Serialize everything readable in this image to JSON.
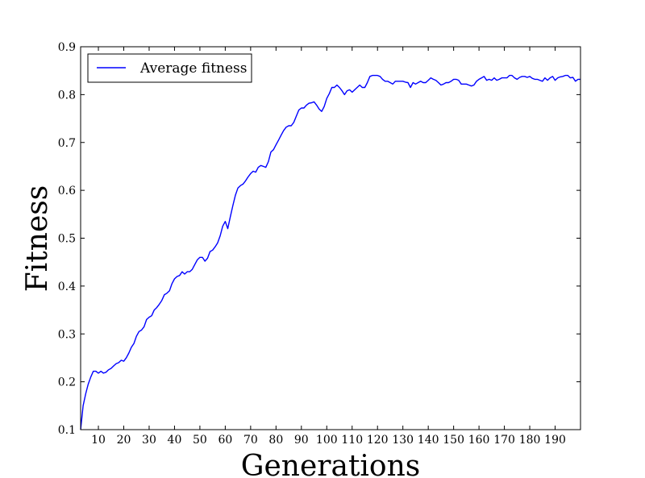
{
  "chart_data": {
    "type": "line",
    "title": "",
    "xlabel": "Generations",
    "ylabel": "Fitness",
    "xlim": [
      3,
      200
    ],
    "ylim": [
      0.1,
      0.9
    ],
    "xticks": [
      10,
      20,
      30,
      40,
      50,
      60,
      70,
      80,
      90,
      100,
      110,
      120,
      130,
      140,
      150,
      160,
      170,
      180,
      190
    ],
    "yticks": [
      0.1,
      0.2,
      0.3,
      0.4,
      0.5,
      0.6,
      0.7,
      0.8,
      0.9
    ],
    "grid": false,
    "legend_position": "top-left",
    "series": [
      {
        "name": "Average fitness",
        "color": "#0000ff",
        "points": [
          [
            3,
            0.1
          ],
          [
            4,
            0.15
          ],
          [
            5,
            0.175
          ],
          [
            6,
            0.195
          ],
          [
            7,
            0.21
          ],
          [
            8,
            0.222
          ],
          [
            9,
            0.222
          ],
          [
            10,
            0.218
          ],
          [
            11,
            0.222
          ],
          [
            12,
            0.218
          ],
          [
            13,
            0.22
          ],
          [
            14,
            0.225
          ],
          [
            15,
            0.228
          ],
          [
            16,
            0.233
          ],
          [
            17,
            0.238
          ],
          [
            18,
            0.24
          ],
          [
            19,
            0.245
          ],
          [
            20,
            0.243
          ],
          [
            21,
            0.25
          ],
          [
            22,
            0.26
          ],
          [
            23,
            0.272
          ],
          [
            24,
            0.28
          ],
          [
            25,
            0.295
          ],
          [
            26,
            0.305
          ],
          [
            27,
            0.308
          ],
          [
            28,
            0.315
          ],
          [
            29,
            0.33
          ],
          [
            30,
            0.335
          ],
          [
            31,
            0.338
          ],
          [
            32,
            0.35
          ],
          [
            33,
            0.355
          ],
          [
            34,
            0.362
          ],
          [
            35,
            0.37
          ],
          [
            36,
            0.382
          ],
          [
            37,
            0.385
          ],
          [
            38,
            0.39
          ],
          [
            39,
            0.405
          ],
          [
            40,
            0.415
          ],
          [
            41,
            0.42
          ],
          [
            42,
            0.422
          ],
          [
            43,
            0.43
          ],
          [
            44,
            0.425
          ],
          [
            45,
            0.43
          ],
          [
            46,
            0.43
          ],
          [
            47,
            0.435
          ],
          [
            48,
            0.445
          ],
          [
            49,
            0.455
          ],
          [
            50,
            0.46
          ],
          [
            51,
            0.46
          ],
          [
            52,
            0.452
          ],
          [
            53,
            0.458
          ],
          [
            54,
            0.472
          ],
          [
            55,
            0.475
          ],
          [
            56,
            0.482
          ],
          [
            57,
            0.49
          ],
          [
            58,
            0.505
          ],
          [
            59,
            0.525
          ],
          [
            60,
            0.535
          ],
          [
            61,
            0.52
          ],
          [
            62,
            0.545
          ],
          [
            63,
            0.568
          ],
          [
            64,
            0.59
          ],
          [
            65,
            0.605
          ],
          [
            66,
            0.61
          ],
          [
            67,
            0.613
          ],
          [
            68,
            0.62
          ],
          [
            69,
            0.628
          ],
          [
            70,
            0.635
          ],
          [
            71,
            0.64
          ],
          [
            72,
            0.638
          ],
          [
            73,
            0.648
          ],
          [
            74,
            0.652
          ],
          [
            75,
            0.65
          ],
          [
            76,
            0.648
          ],
          [
            77,
            0.66
          ],
          [
            78,
            0.68
          ],
          [
            79,
            0.685
          ],
          [
            80,
            0.695
          ],
          [
            81,
            0.705
          ],
          [
            82,
            0.715
          ],
          [
            83,
            0.725
          ],
          [
            84,
            0.732
          ],
          [
            85,
            0.735
          ],
          [
            86,
            0.735
          ],
          [
            87,
            0.742
          ],
          [
            88,
            0.755
          ],
          [
            89,
            0.768
          ],
          [
            90,
            0.772
          ],
          [
            91,
            0.772
          ],
          [
            92,
            0.778
          ],
          [
            93,
            0.782
          ],
          [
            94,
            0.783
          ],
          [
            95,
            0.785
          ],
          [
            96,
            0.778
          ],
          [
            97,
            0.77
          ],
          [
            98,
            0.765
          ],
          [
            99,
            0.775
          ],
          [
            100,
            0.792
          ],
          [
            101,
            0.802
          ],
          [
            102,
            0.815
          ],
          [
            103,
            0.815
          ],
          [
            104,
            0.82
          ],
          [
            105,
            0.815
          ],
          [
            106,
            0.808
          ],
          [
            107,
            0.8
          ],
          [
            108,
            0.808
          ],
          [
            109,
            0.81
          ],
          [
            110,
            0.805
          ],
          [
            111,
            0.81
          ],
          [
            112,
            0.815
          ],
          [
            113,
            0.82
          ],
          [
            114,
            0.815
          ],
          [
            115,
            0.815
          ],
          [
            116,
            0.825
          ],
          [
            117,
            0.838
          ],
          [
            118,
            0.84
          ],
          [
            119,
            0.84
          ],
          [
            120,
            0.84
          ],
          [
            121,
            0.838
          ],
          [
            122,
            0.832
          ],
          [
            123,
            0.828
          ],
          [
            124,
            0.828
          ],
          [
            125,
            0.825
          ],
          [
            126,
            0.822
          ],
          [
            127,
            0.828
          ],
          [
            128,
            0.828
          ],
          [
            129,
            0.828
          ],
          [
            130,
            0.828
          ],
          [
            131,
            0.826
          ],
          [
            132,
            0.825
          ],
          [
            133,
            0.815
          ],
          [
            134,
            0.825
          ],
          [
            135,
            0.822
          ],
          [
            136,
            0.825
          ],
          [
            137,
            0.828
          ],
          [
            138,
            0.825
          ],
          [
            139,
            0.825
          ],
          [
            140,
            0.83
          ],
          [
            141,
            0.835
          ],
          [
            142,
            0.832
          ],
          [
            143,
            0.83
          ],
          [
            144,
            0.825
          ],
          [
            145,
            0.82
          ],
          [
            146,
            0.822
          ],
          [
            147,
            0.825
          ],
          [
            148,
            0.825
          ],
          [
            149,
            0.828
          ],
          [
            150,
            0.832
          ],
          [
            151,
            0.832
          ],
          [
            152,
            0.83
          ],
          [
            153,
            0.822
          ],
          [
            154,
            0.822
          ],
          [
            155,
            0.822
          ],
          [
            156,
            0.82
          ],
          [
            157,
            0.818
          ],
          [
            158,
            0.82
          ],
          [
            159,
            0.828
          ],
          [
            160,
            0.832
          ],
          [
            161,
            0.835
          ],
          [
            162,
            0.838
          ],
          [
            163,
            0.83
          ],
          [
            164,
            0.832
          ],
          [
            165,
            0.83
          ],
          [
            166,
            0.835
          ],
          [
            167,
            0.83
          ],
          [
            168,
            0.832
          ],
          [
            169,
            0.835
          ],
          [
            170,
            0.835
          ],
          [
            171,
            0.835
          ],
          [
            172,
            0.84
          ],
          [
            173,
            0.84
          ],
          [
            174,
            0.835
          ],
          [
            175,
            0.832
          ],
          [
            176,
            0.836
          ],
          [
            177,
            0.838
          ],
          [
            178,
            0.838
          ],
          [
            179,
            0.836
          ],
          [
            180,
            0.838
          ],
          [
            181,
            0.834
          ],
          [
            182,
            0.832
          ],
          [
            183,
            0.832
          ],
          [
            184,
            0.83
          ],
          [
            185,
            0.828
          ],
          [
            186,
            0.835
          ],
          [
            187,
            0.83
          ],
          [
            188,
            0.835
          ],
          [
            189,
            0.838
          ],
          [
            190,
            0.83
          ],
          [
            191,
            0.835
          ],
          [
            192,
            0.837
          ],
          [
            193,
            0.838
          ],
          [
            194,
            0.84
          ],
          [
            195,
            0.84
          ],
          [
            196,
            0.835
          ],
          [
            197,
            0.836
          ],
          [
            198,
            0.828
          ],
          [
            199,
            0.832
          ],
          [
            200,
            0.832
          ]
        ]
      }
    ]
  }
}
